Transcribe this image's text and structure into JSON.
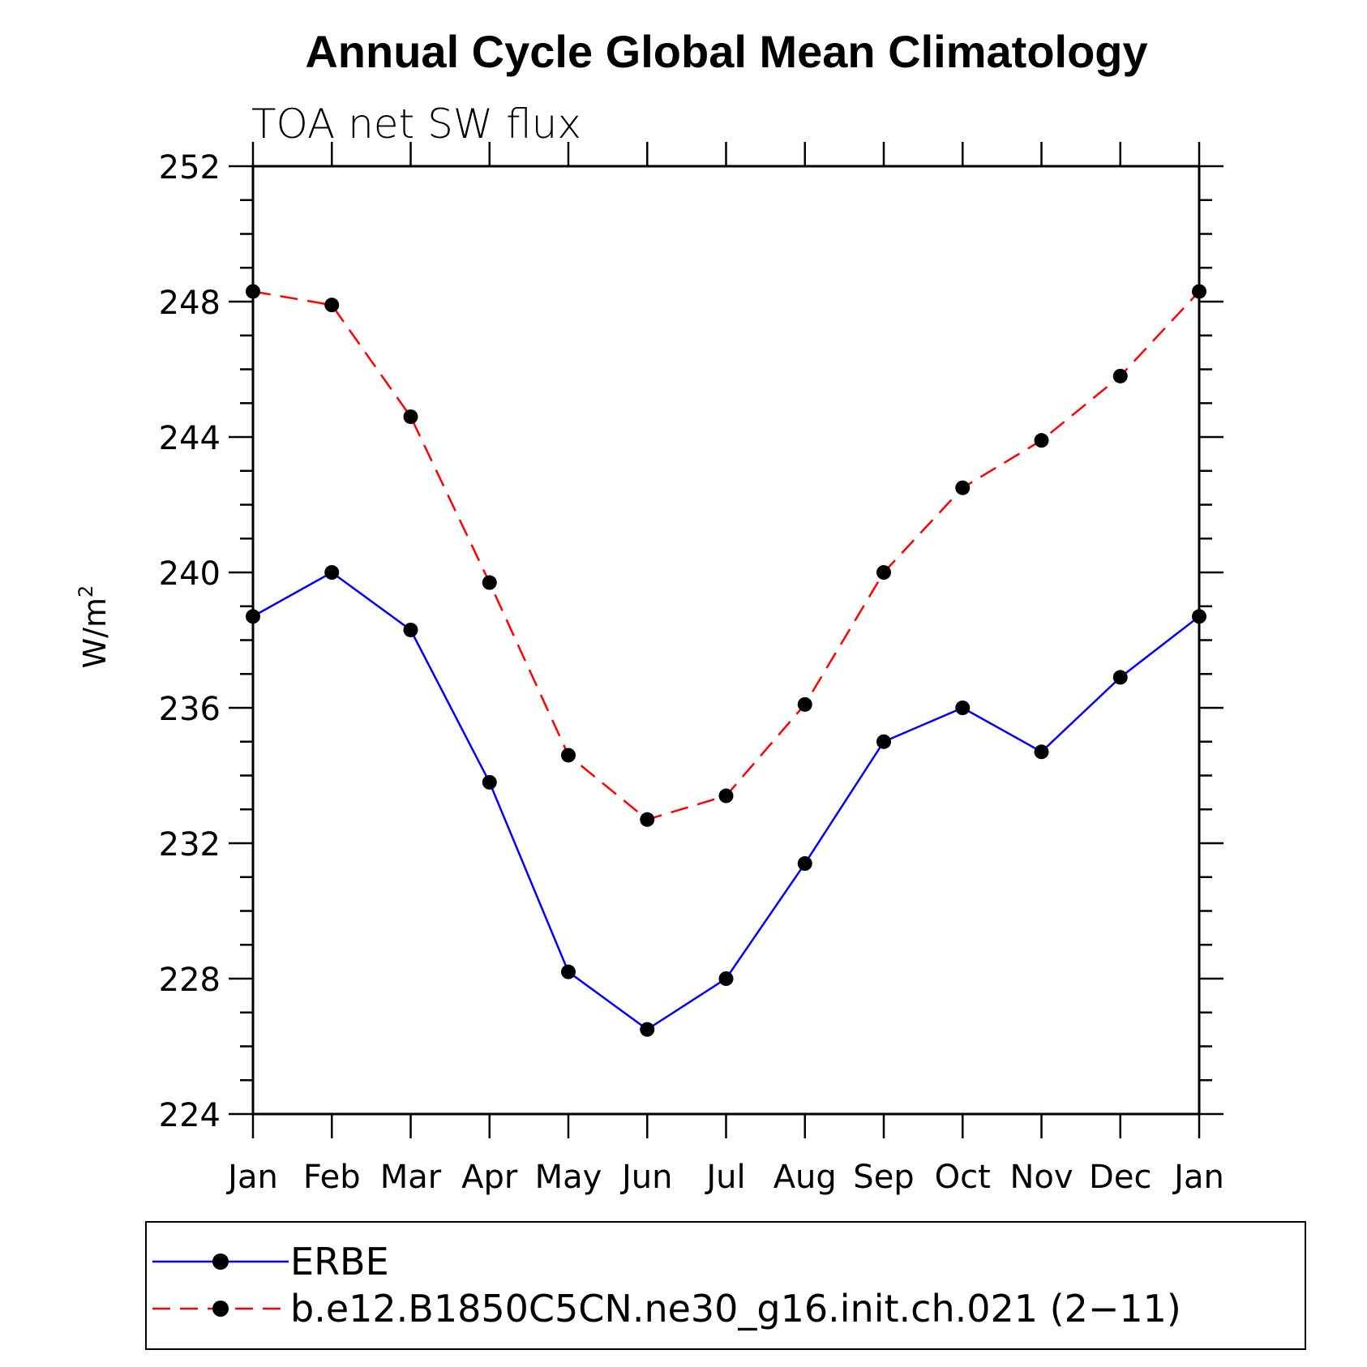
{
  "chart_data": {
    "type": "line",
    "title": "Annual Cycle Global Mean Climatology",
    "subtitle": "TOA net SW flux",
    "xlabel": "",
    "ylabel": "W/m",
    "ylabel_superscript": "2",
    "categories": [
      "Jan",
      "Feb",
      "Mar",
      "Apr",
      "May",
      "Jun",
      "Jul",
      "Aug",
      "Sep",
      "Oct",
      "Nov",
      "Dec",
      "Jan"
    ],
    "ylim": [
      224,
      252
    ],
    "yticks": [
      224,
      228,
      232,
      236,
      240,
      244,
      248,
      252
    ],
    "y_minor_step": 1,
    "grid": false,
    "legend_position": "bottom",
    "series": [
      {
        "name": "ERBE",
        "color": "#0000ff",
        "dash": "solid",
        "marker": "circle",
        "values": [
          238.7,
          240.0,
          238.3,
          233.8,
          228.2,
          226.5,
          228.0,
          231.4,
          235.0,
          236.0,
          234.7,
          236.9,
          238.7
        ]
      },
      {
        "name": "b.e12.B1850C5CN.ne30_g16.init.ch.021 (2−11)",
        "color": "#ff0000",
        "dash": "dashed",
        "marker": "circle",
        "values": [
          248.3,
          247.9,
          244.6,
          239.7,
          234.6,
          232.7,
          233.4,
          236.1,
          240.0,
          242.5,
          243.9,
          245.8,
          248.3
        ]
      }
    ]
  }
}
